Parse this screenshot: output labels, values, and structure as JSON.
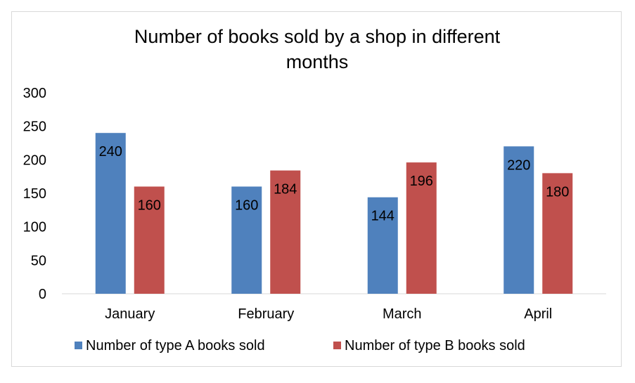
{
  "chart_data": {
    "type": "bar",
    "title_lines": [
      "Number of books sold by a shop in different",
      "months"
    ],
    "categories": [
      "January",
      "February",
      "March",
      "April"
    ],
    "series": [
      {
        "name": "Number of type A books sold",
        "values": [
          240,
          160,
          144,
          220
        ],
        "color": "#4f81bd"
      },
      {
        "name": "Number of type B books sold",
        "values": [
          160,
          184,
          196,
          180
        ],
        "color": "#c0504d"
      }
    ],
    "ylim": [
      0,
      300
    ],
    "yticks": [
      "0",
      "50",
      "100",
      "150",
      "200",
      "250",
      "300"
    ],
    "grid": false,
    "legend_position": "bottom",
    "data_labels": true
  }
}
